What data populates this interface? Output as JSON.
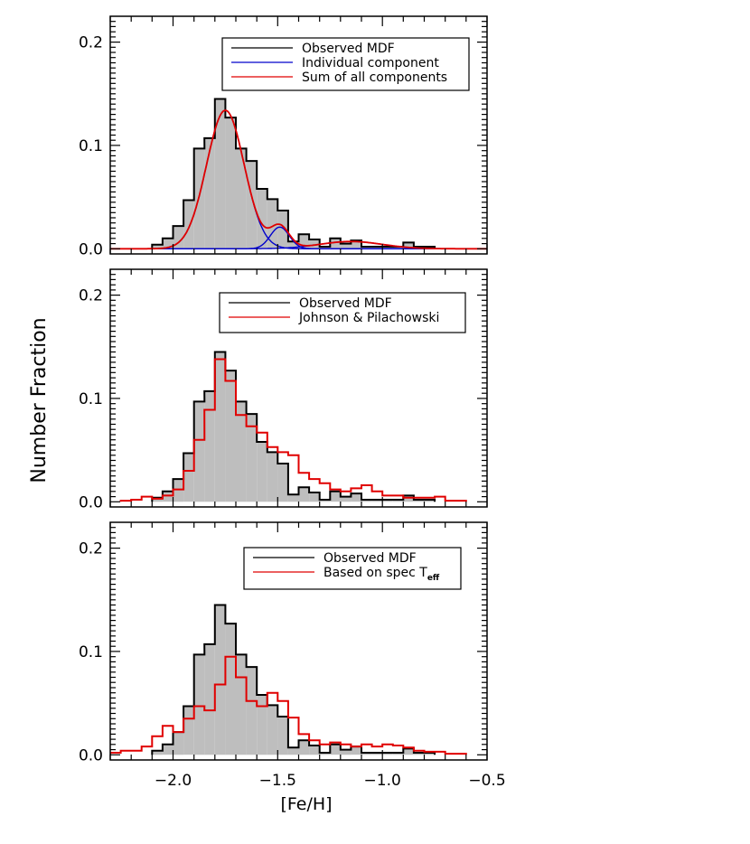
{
  "figure": {
    "ylabel": "Number Fraction",
    "xlabel": "[Fe/H]",
    "xlim": [
      -2.3,
      -0.5
    ],
    "xticks": [
      -2.0,
      -1.5,
      -1.0,
      -0.5
    ],
    "xtick_labels": [
      "−2.0",
      "−1.5",
      "−1.0",
      "−0.5"
    ],
    "ylim": [
      -0.005,
      0.225
    ],
    "yticks": [
      0.0,
      0.1,
      0.2
    ],
    "ytick_labels": [
      "0.0",
      "0.1",
      "0.2"
    ],
    "colors": {
      "hist_fill": "#bebebe",
      "observed": "#000000",
      "component": "#0000cc",
      "model": "#e00000"
    }
  },
  "chart_data": [
    {
      "type": "bar",
      "panel": "top",
      "bin_width": 0.05,
      "legend_position": "top-right",
      "legend": [
        "Observed MDF",
        "Individual component",
        "Sum of all components"
      ],
      "observed": {
        "name": "Observed MDF",
        "bin_left_edges": [
          -2.1,
          -2.05,
          -2.0,
          -1.95,
          -1.9,
          -1.85,
          -1.8,
          -1.75,
          -1.7,
          -1.65,
          -1.6,
          -1.55,
          -1.5,
          -1.45,
          -1.4,
          -1.35,
          -1.3,
          -1.25,
          -1.2,
          -1.15,
          -1.1,
          -1.05,
          -1.0,
          -0.95,
          -0.9,
          -0.85,
          -0.8
        ],
        "values": [
          0.004,
          0.01,
          0.022,
          0.047,
          0.097,
          0.107,
          0.145,
          0.127,
          0.097,
          0.085,
          0.058,
          0.048,
          0.037,
          0.007,
          0.014,
          0.009,
          0.002,
          0.01,
          0.005,
          0.008,
          0.002,
          0.002,
          0.002,
          0.002,
          0.006,
          0.002,
          0.002
        ]
      },
      "components": [
        {
          "name": "Individual component",
          "mu": -1.75,
          "sigma": 0.09,
          "amplitude": 0.134
        },
        {
          "name": "Individual component",
          "mu": -1.49,
          "sigma": 0.045,
          "amplitude": 0.021
        },
        {
          "name": "Individual component",
          "mu": -1.15,
          "sigma": 0.15,
          "amplitude": 0.007
        }
      ]
    },
    {
      "type": "bar",
      "panel": "middle",
      "bin_width": 0.05,
      "legend_position": "top-right",
      "legend": [
        "Observed MDF",
        "Johnson & Pilachowski"
      ],
      "observed": {
        "name": "Observed MDF",
        "bin_left_edges": [
          -2.1,
          -2.05,
          -2.0,
          -1.95,
          -1.9,
          -1.85,
          -1.8,
          -1.75,
          -1.7,
          -1.65,
          -1.6,
          -1.55,
          -1.5,
          -1.45,
          -1.4,
          -1.35,
          -1.3,
          -1.25,
          -1.2,
          -1.15,
          -1.1,
          -1.05,
          -1.0,
          -0.95,
          -0.9,
          -0.85,
          -0.8
        ],
        "values": [
          0.004,
          0.01,
          0.022,
          0.047,
          0.097,
          0.107,
          0.145,
          0.127,
          0.097,
          0.085,
          0.058,
          0.048,
          0.037,
          0.007,
          0.014,
          0.009,
          0.002,
          0.01,
          0.005,
          0.008,
          0.002,
          0.002,
          0.002,
          0.002,
          0.006,
          0.002,
          0.002
        ]
      },
      "comparison": {
        "name": "Johnson & Pilachowski",
        "bin_left_edges": [
          -2.25,
          -2.2,
          -2.15,
          -2.1,
          -2.05,
          -2.0,
          -1.95,
          -1.9,
          -1.85,
          -1.8,
          -1.75,
          -1.7,
          -1.65,
          -1.6,
          -1.55,
          -1.5,
          -1.45,
          -1.4,
          -1.35,
          -1.3,
          -1.25,
          -1.2,
          -1.15,
          -1.1,
          -1.05,
          -1.0,
          -0.95,
          -0.9,
          -0.85,
          -0.8,
          -0.75,
          -0.7,
          -0.65
        ],
        "values": [
          0.001,
          0.002,
          0.005,
          0.003,
          0.006,
          0.012,
          0.03,
          0.06,
          0.089,
          0.138,
          0.117,
          0.084,
          0.073,
          0.067,
          0.053,
          0.048,
          0.045,
          0.028,
          0.022,
          0.018,
          0.012,
          0.01,
          0.013,
          0.016,
          0.01,
          0.006,
          0.006,
          0.004,
          0.004,
          0.004,
          0.005,
          0.001,
          0.001
        ]
      }
    },
    {
      "type": "bar",
      "panel": "bottom",
      "bin_width": 0.05,
      "legend_position": "top-right",
      "legend": [
        "Observed MDF",
        "Based on spec T"
      ],
      "observed": {
        "name": "Observed MDF",
        "bin_left_edges": [
          -2.1,
          -2.05,
          -2.0,
          -1.95,
          -1.9,
          -1.85,
          -1.8,
          -1.75,
          -1.7,
          -1.65,
          -1.6,
          -1.55,
          -1.5,
          -1.45,
          -1.4,
          -1.35,
          -1.3,
          -1.25,
          -1.2,
          -1.15,
          -1.1,
          -1.05,
          -1.0,
          -0.95,
          -0.9,
          -0.85,
          -0.8
        ],
        "values": [
          0.004,
          0.01,
          0.022,
          0.047,
          0.097,
          0.107,
          0.145,
          0.127,
          0.097,
          0.085,
          0.058,
          0.048,
          0.037,
          0.007,
          0.014,
          0.009,
          0.002,
          0.01,
          0.005,
          0.008,
          0.002,
          0.002,
          0.002,
          0.002,
          0.006,
          0.002,
          0.002
        ]
      },
      "comparison": {
        "name": "Based on spec T",
        "subscript": "eff",
        "bin_left_edges": [
          -2.3,
          -2.25,
          -2.2,
          -2.15,
          -2.1,
          -2.05,
          -2.0,
          -1.95,
          -1.9,
          -1.85,
          -1.8,
          -1.75,
          -1.7,
          -1.65,
          -1.6,
          -1.55,
          -1.5,
          -1.45,
          -1.4,
          -1.35,
          -1.3,
          -1.25,
          -1.2,
          -1.15,
          -1.1,
          -1.05,
          -1.0,
          -0.95,
          -0.9,
          -0.85,
          -0.8,
          -0.75,
          -0.7,
          -0.65
        ],
        "values": [
          0.002,
          0.004,
          0.004,
          0.008,
          0.018,
          0.028,
          0.022,
          0.035,
          0.047,
          0.043,
          0.068,
          0.095,
          0.075,
          0.052,
          0.047,
          0.06,
          0.052,
          0.036,
          0.02,
          0.014,
          0.01,
          0.012,
          0.01,
          0.008,
          0.01,
          0.008,
          0.01,
          0.009,
          0.007,
          0.004,
          0.003,
          0.003,
          0.001,
          0.001
        ]
      }
    }
  ]
}
